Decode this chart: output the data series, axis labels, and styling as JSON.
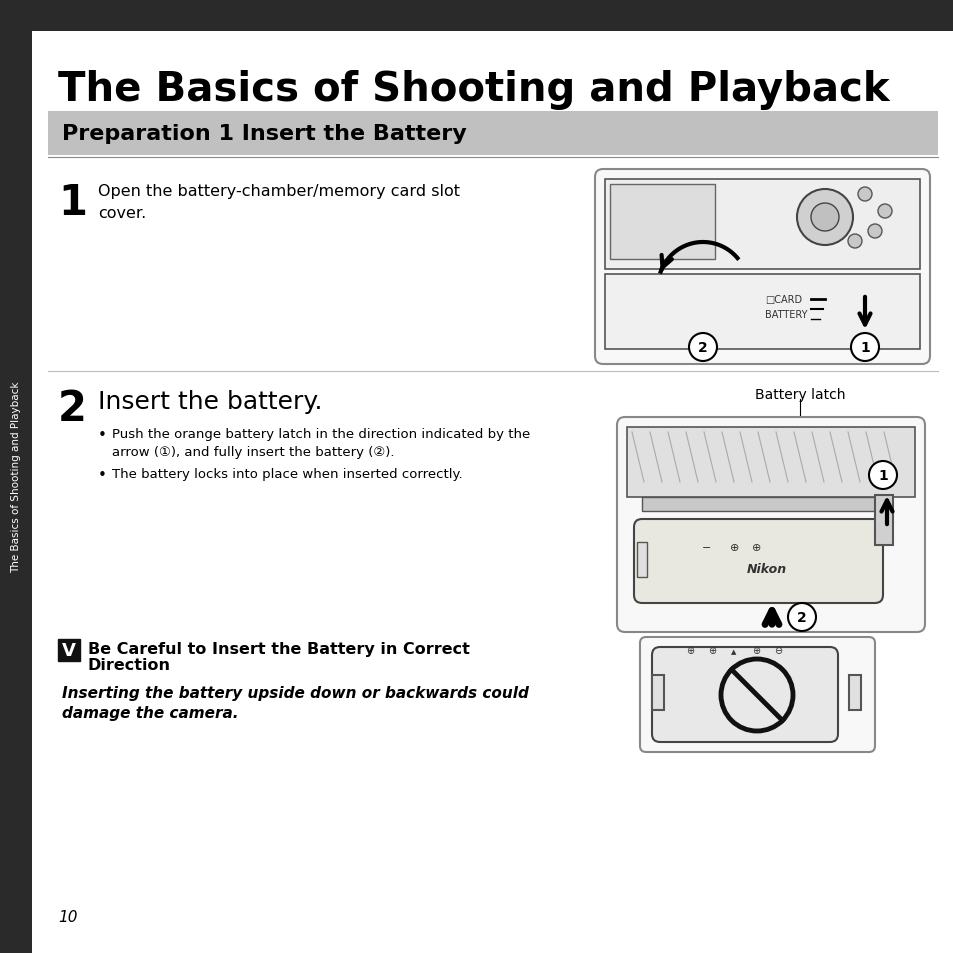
{
  "title": "The Basics of Shooting and Playback",
  "section_title": "Preparation 1 Insert the Battery",
  "step1_number": "1",
  "step1_text": "Open the battery-chamber/memory card slot\ncover.",
  "step2_number": "2",
  "step2_text": "Insert the battery.",
  "step2_bullet1": "Push the orange battery latch in the direction indicated by the\narrow (①), and fully insert the battery (②).",
  "step2_bullet2": "The battery locks into place when inserted correctly.",
  "battery_latch_label": "Battery latch",
  "warning_title_line1": "Be Careful to Insert the Battery in Correct",
  "warning_title_line2": "Direction",
  "warning_text_line1": "Inserting the battery upside down or backwards could",
  "warning_text_line2": "damage the camera.",
  "page_number": "10",
  "sidebar_text": "The Basics of Shooting and Playback",
  "bg_color": "#ffffff",
  "header_bg": "#2a2a2a",
  "section_bg": "#c0c0c0",
  "sidebar_bg": "#2a2a2a",
  "text_color": "#000000",
  "sidebar_text_color": "#ffffff",
  "line_color": "#aaaaaa",
  "img_border_color": "#888888",
  "img_bg": "#f8f8f8"
}
